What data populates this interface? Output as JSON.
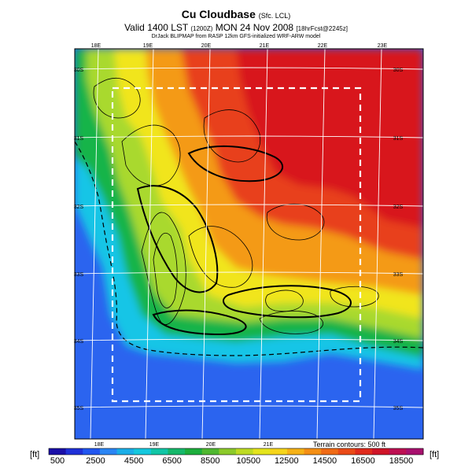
{
  "title": {
    "main": "Cu Cloudbase",
    "main_suffix": "(Sfc. LCL)",
    "valid": "Valid 1400 LST",
    "valid_sub": "(1200Z)",
    "valid_date": "MON 24 Nov 2008",
    "valid_tail": "[18hrFcst@2245z]",
    "credit": "DrJack BLIPMAP from RASP 12km GFS-initialized WRF-ARW model"
  },
  "map": {
    "lon_labels_top": [
      "18E",
      "19E",
      "20E",
      "21E",
      "22E",
      "23E"
    ],
    "lon_labels_bottom": [
      "18E",
      "19E",
      "20E",
      "21E"
    ],
    "lat_labels_left": [
      "30S",
      "31S",
      "32S",
      "33S",
      "34S",
      "35S"
    ],
    "lat_labels_right": [
      "30S",
      "31S",
      "32S",
      "33S",
      "34S",
      "35S"
    ],
    "colors": {
      "sea_deep": "#1a3fd6",
      "sea": "#2b64ef",
      "low": "#14c5e6",
      "mid_low": "#17b44a",
      "mid": "#a9d92e",
      "mid_high": "#f1e51b",
      "high": "#f49a12",
      "very_high": "#e8401d",
      "top": "#d8141e"
    }
  },
  "colorbar": {
    "unit_left": "[ft]",
    "unit_right": "[ft]",
    "labels": [
      "500",
      "2500",
      "4500",
      "6500",
      "8500",
      "10500",
      "12500",
      "14500",
      "16500",
      "18500"
    ],
    "colors": [
      "#1a0fa8",
      "#1f30d8",
      "#2156f0",
      "#2a85f4",
      "#1aaee8",
      "#14c8de",
      "#10c6a6",
      "#15b86a",
      "#1cae3c",
      "#4fb830",
      "#8cca2a",
      "#bedb22",
      "#e4e41c",
      "#f6d51a",
      "#f6b216",
      "#f48f14",
      "#f06a14",
      "#ea4a17",
      "#e02a1c",
      "#cf1428",
      "#bd0f52",
      "#a8106e"
    ]
  },
  "terrain_note": "Terrain contours: 500 ft"
}
